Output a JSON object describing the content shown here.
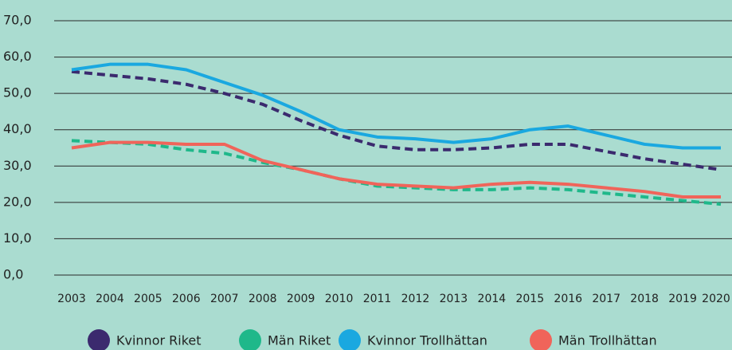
{
  "chart_data": {
    "type": "line",
    "categories": [
      "2003",
      "2004",
      "2005",
      "2006",
      "2007",
      "2008",
      "2009",
      "2010",
      "2011",
      "2012",
      "2013",
      "2014",
      "2015",
      "2016",
      "2017",
      "2018",
      "2019",
      "2020"
    ],
    "series": [
      {
        "name": "Kvinnor Riket",
        "color": "#3b2a6e",
        "style": "dashed",
        "values": [
          56,
          55,
          54,
          52.5,
          50,
          47,
          42.5,
          38.5,
          35.5,
          34.5,
          34.5,
          35,
          36,
          36,
          34,
          32,
          30.5,
          29
        ]
      },
      {
        "name": "Män Riket",
        "color": "#1fb88a",
        "style": "dashed",
        "values": [
          37,
          36.5,
          36,
          34.5,
          33.5,
          31,
          29,
          26.5,
          24.5,
          24,
          23.5,
          23.5,
          24,
          23.5,
          22.5,
          21.5,
          20.5,
          19.5
        ]
      },
      {
        "name": "Kvinnor Trollhättan",
        "color": "#1aa8e0",
        "style": "solid",
        "values": [
          56.5,
          58,
          58,
          56.5,
          53,
          49.5,
          45,
          40,
          38,
          37.5,
          36.5,
          37.5,
          40,
          41,
          38.5,
          36,
          35,
          35
        ]
      },
      {
        "name": "Män Trollhättan",
        "color": "#f0645a",
        "style": "solid",
        "values": [
          35,
          36.5,
          36.5,
          36,
          36,
          31.5,
          29,
          26.5,
          25,
          24.5,
          24,
          25,
          25.5,
          25,
          24,
          23,
          21.5,
          21.5
        ]
      }
    ],
    "ylim": [
      0,
      70
    ],
    "yticks": [
      {
        "value": 0,
        "label": "0,0"
      },
      {
        "value": 10,
        "label": "10,0"
      },
      {
        "value": 20,
        "label": "20,0"
      },
      {
        "value": 30,
        "label": "30,0"
      },
      {
        "value": 40,
        "label": "40,0"
      },
      {
        "value": 50,
        "label": "50,0"
      },
      {
        "value": 60,
        "label": "60,0"
      },
      {
        "value": 70,
        "label": "70,0"
      }
    ],
    "grid": true,
    "legend": "bottom"
  }
}
